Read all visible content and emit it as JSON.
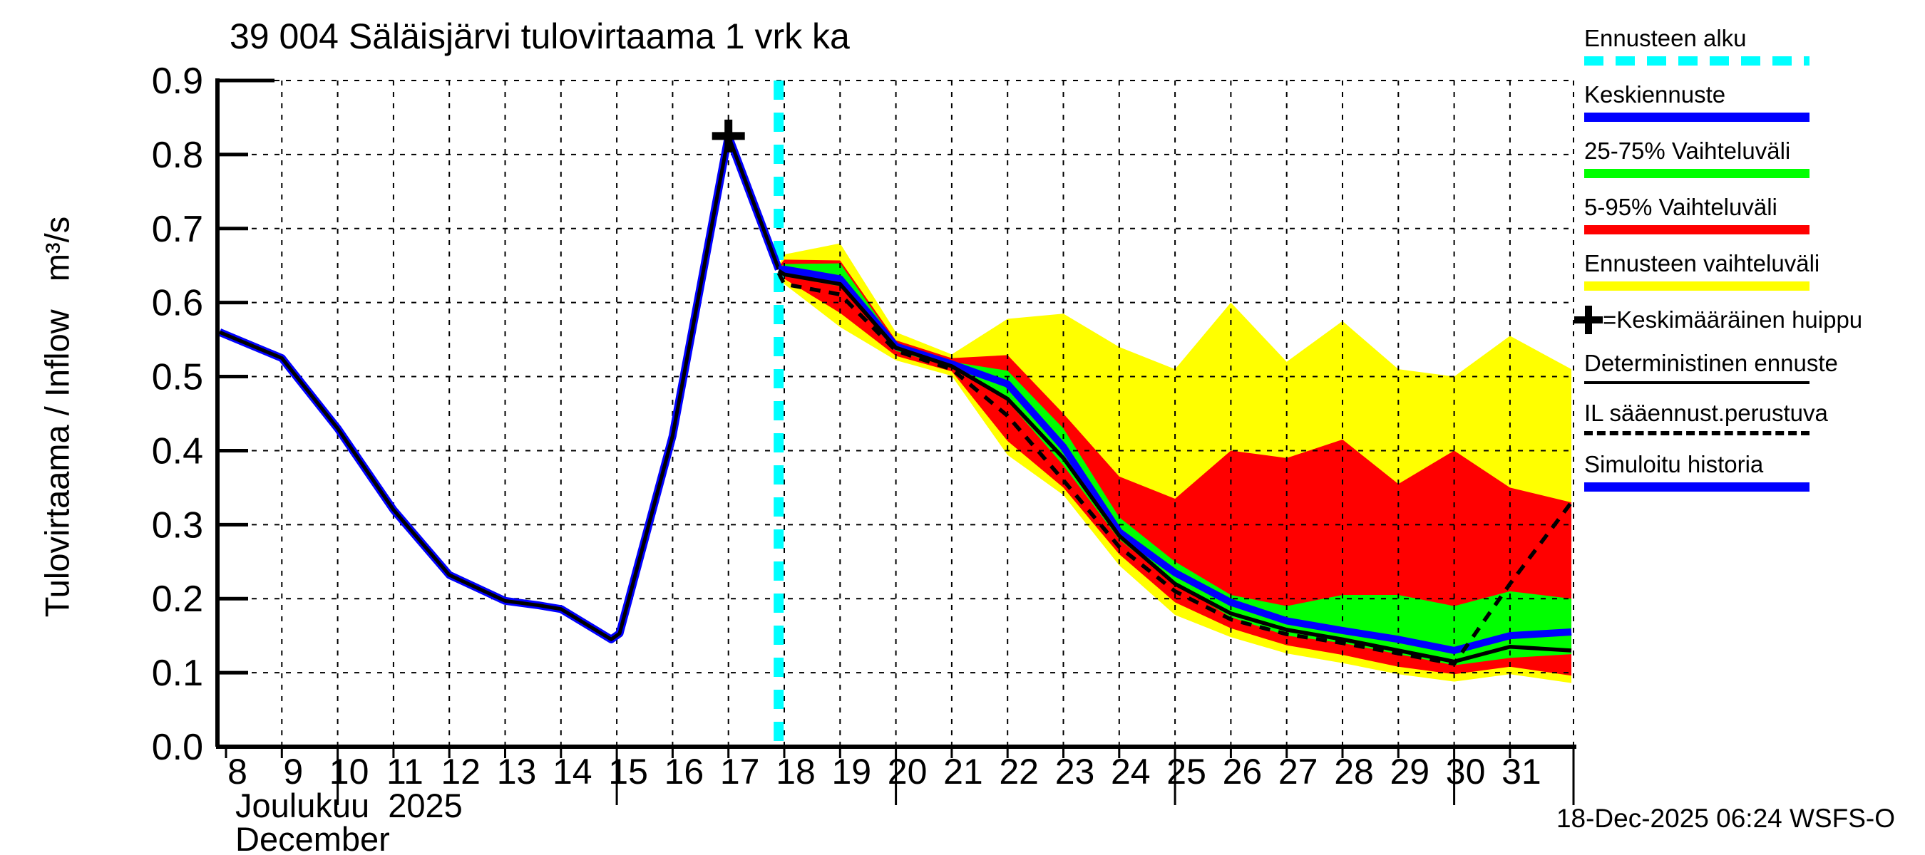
{
  "title": "39 004 Säläisjärvi tulovirtaama 1 vrk ka",
  "y_axis_label": "Tulovirtaama / Inflow   m³/s",
  "x_axis": {
    "month_label_fi": "Joulukuu  2025",
    "month_label_en": "December",
    "tick_days": [
      8,
      9,
      10,
      11,
      12,
      13,
      14,
      15,
      16,
      17,
      18,
      19,
      20,
      21,
      22,
      23,
      24,
      25,
      26,
      27,
      28,
      29,
      30,
      31
    ],
    "long_tick_days": [
      10,
      15,
      20,
      25,
      30
    ]
  },
  "timestamp": "18-Dec-2025 06:24 WSFS-O",
  "colors": {
    "background": "#ffffff",
    "cyan": "#00ffff",
    "blue": "#0000ff",
    "green": "#00ff00",
    "red": "#ff0000",
    "yellow": "#ffff00",
    "black": "#000000"
  },
  "legend": {
    "items": [
      {
        "label": "Ennusteen alku",
        "swatch": "cyan-dashed",
        "color": "#00ffff"
      },
      {
        "label": "Keskiennuste",
        "swatch": "bar",
        "color": "#0000ff"
      },
      {
        "label": "25-75% Vaihteluväli",
        "swatch": "bar",
        "color": "#00ff00"
      },
      {
        "label": "5-95% Vaihteluväli",
        "swatch": "bar",
        "color": "#ff0000"
      },
      {
        "label": "Ennusteen vaihteluväli",
        "swatch": "bar",
        "color": "#ffff00"
      },
      {
        "label": "=Keskimääräinen huippu",
        "swatch": "plus",
        "color": "#000000"
      },
      {
        "label": "Deterministinen ennuste",
        "swatch": "thin-line",
        "color": "#000000"
      },
      {
        "label": "IL sääennust.perustuva",
        "swatch": "dashed-line",
        "color": "#000000"
      },
      {
        "label": "Simuloitu historia",
        "swatch": "bar",
        "color": "#0000ff"
      }
    ]
  },
  "chart_data": {
    "type": "line",
    "title": "39 004 Säläisjärvi tulovirtaama 1 vrk ka",
    "xlabel": "Joulukuu 2025 / December (day of month)",
    "ylabel": "Tulovirtaama / Inflow m³/s",
    "ylim": [
      0.0,
      0.9
    ],
    "xlim": [
      8,
      32.1
    ],
    "grid": true,
    "legend_position": "right",
    "y_tick_labels": [
      "0.0",
      "0.1",
      "0.2",
      "0.3",
      "0.4",
      "0.5",
      "0.6",
      "0.7",
      "0.8",
      "0.9"
    ],
    "forecast_start_x": 17.9,
    "history": {
      "name": "Simuloitu historia",
      "x": [
        8,
        9,
        10,
        11,
        12,
        13,
        13.6,
        14,
        14.9,
        15.05,
        16,
        17,
        17.9
      ],
      "y": [
        0.56,
        0.525,
        0.43,
        0.32,
        0.232,
        0.197,
        0.191,
        0.186,
        0.145,
        0.153,
        0.42,
        0.825,
        0.645
      ]
    },
    "peak_marker": {
      "name": "Keskimääräinen huippu",
      "x": 17,
      "y": 0.825
    },
    "forecast": {
      "x": [
        17.9,
        18,
        19,
        20,
        21,
        22,
        23,
        24,
        25,
        26,
        27,
        28,
        29,
        30,
        31,
        32.1
      ],
      "range_max": [
        0.65,
        0.665,
        0.68,
        0.56,
        0.53,
        0.578,
        0.585,
        0.54,
        0.51,
        0.6,
        0.52,
        0.575,
        0.51,
        0.5,
        0.555,
        0.51
      ],
      "range_min": [
        0.64,
        0.625,
        0.567,
        0.522,
        0.501,
        0.394,
        0.34,
        0.245,
        0.178,
        0.148,
        0.126,
        0.113,
        0.098,
        0.088,
        0.098,
        0.086
      ],
      "p95": [
        0.648,
        0.658,
        0.657,
        0.549,
        0.525,
        0.529,
        0.45,
        0.365,
        0.335,
        0.4,
        0.39,
        0.415,
        0.355,
        0.4,
        0.35,
        0.33
      ],
      "p5": [
        0.643,
        0.632,
        0.586,
        0.528,
        0.507,
        0.413,
        0.35,
        0.26,
        0.195,
        0.16,
        0.137,
        0.124,
        0.108,
        0.098,
        0.108,
        0.096
      ],
      "p75": [
        0.647,
        0.652,
        0.653,
        0.545,
        0.52,
        0.508,
        0.43,
        0.31,
        0.25,
        0.205,
        0.19,
        0.205,
        0.205,
        0.19,
        0.21,
        0.2
      ],
      "p25": [
        0.641,
        0.636,
        0.622,
        0.535,
        0.512,
        0.467,
        0.38,
        0.28,
        0.22,
        0.175,
        0.15,
        0.14,
        0.125,
        0.11,
        0.12,
        0.125
      ],
      "median": [
        0.644,
        0.645,
        0.632,
        0.541,
        0.517,
        0.49,
        0.405,
        0.29,
        0.235,
        0.195,
        0.17,
        0.157,
        0.145,
        0.13,
        0.15,
        0.155
      ],
      "deterministic": [
        0.643,
        0.638,
        0.625,
        0.539,
        0.514,
        0.47,
        0.39,
        0.285,
        0.22,
        0.18,
        0.158,
        0.145,
        0.13,
        0.115,
        0.135,
        0.13
      ],
      "il_weather": [
        0.64,
        0.625,
        0.611,
        0.535,
        0.51,
        0.447,
        0.36,
        0.27,
        0.21,
        0.172,
        0.152,
        0.14,
        0.126,
        0.112,
        0.22,
        0.33
      ]
    }
  }
}
